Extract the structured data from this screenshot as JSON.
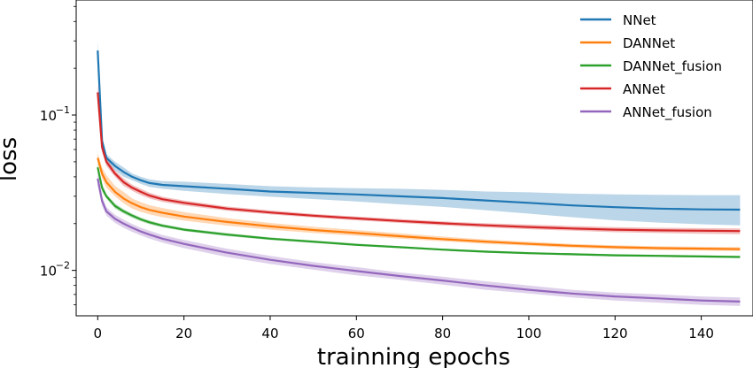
{
  "chart_data": {
    "type": "line",
    "title": "",
    "xlabel": "trainning epochs",
    "ylabel": "loss",
    "xlim": [
      -5,
      152
    ],
    "ylim": [
      0.0051,
      0.55
    ],
    "yscale": "log",
    "xticks": [
      0,
      20,
      40,
      60,
      80,
      100,
      120,
      140
    ],
    "xtick_labels": [
      "0",
      "20",
      "40",
      "60",
      "80",
      "100",
      "120",
      "140"
    ],
    "yticks": [
      0.01,
      0.1
    ],
    "ytick_labels": [
      {
        "base": "10",
        "exp": "−2"
      },
      {
        "base": "10",
        "exp": "−1"
      }
    ],
    "grid": false,
    "legend": "top-right",
    "x": [
      0,
      1,
      2,
      4,
      6,
      8,
      10,
      12,
      15,
      20,
      30,
      40,
      50,
      60,
      70,
      80,
      90,
      100,
      110,
      120,
      130,
      140,
      149
    ],
    "series": [
      {
        "name": "NNet",
        "color": "#1f77b4",
        "values": [
          0.26,
          0.068,
          0.053,
          0.047,
          0.043,
          0.04,
          0.038,
          0.0365,
          0.0355,
          0.0348,
          0.0335,
          0.0322,
          0.0315,
          0.0308,
          0.03,
          0.0292,
          0.0282,
          0.0272,
          0.0262,
          0.0255,
          0.025,
          0.0247,
          0.0246
        ],
        "lower": [
          0.23,
          0.063,
          0.05,
          0.044,
          0.04,
          0.038,
          0.036,
          0.0345,
          0.0335,
          0.0325,
          0.031,
          0.0298,
          0.0288,
          0.0278,
          0.0266,
          0.0256,
          0.0244,
          0.0232,
          0.022,
          0.021,
          0.0203,
          0.0198,
          0.0195
        ],
        "upper": [
          0.3,
          0.073,
          0.056,
          0.05,
          0.046,
          0.042,
          0.04,
          0.0385,
          0.0375,
          0.0372,
          0.036,
          0.0348,
          0.0342,
          0.0338,
          0.0335,
          0.033,
          0.0322,
          0.0318,
          0.0312,
          0.0308,
          0.0306,
          0.0305,
          0.0305
        ]
      },
      {
        "name": "DANNet",
        "color": "#ff7f0e",
        "values": [
          0.053,
          0.042,
          0.037,
          0.032,
          0.029,
          0.027,
          0.0255,
          0.0245,
          0.0235,
          0.0222,
          0.0205,
          0.0192,
          0.0182,
          0.0174,
          0.0166,
          0.0159,
          0.0153,
          0.0148,
          0.0144,
          0.0141,
          0.0139,
          0.0138,
          0.0137
        ],
        "lower": [
          0.049,
          0.039,
          0.034,
          0.03,
          0.027,
          0.025,
          0.0238,
          0.0229,
          0.022,
          0.0209,
          0.0194,
          0.0183,
          0.0174,
          0.0167,
          0.016,
          0.0154,
          0.0148,
          0.0144,
          0.014,
          0.0137,
          0.0135,
          0.0134,
          0.0133
        ],
        "upper": [
          0.057,
          0.046,
          0.041,
          0.035,
          0.032,
          0.029,
          0.0275,
          0.0263,
          0.0252,
          0.0237,
          0.0217,
          0.0202,
          0.0191,
          0.0182,
          0.0173,
          0.0165,
          0.0158,
          0.0153,
          0.0148,
          0.0145,
          0.0143,
          0.0142,
          0.0141
        ]
      },
      {
        "name": "DANNet_fusion",
        "color": "#2ca02c",
        "values": [
          0.046,
          0.034,
          0.03,
          0.026,
          0.024,
          0.0225,
          0.0213,
          0.0204,
          0.0194,
          0.0183,
          0.017,
          0.016,
          0.0153,
          0.0146,
          0.0141,
          0.0136,
          0.0132,
          0.0129,
          0.0127,
          0.0125,
          0.0124,
          0.0123,
          0.0122
        ],
        "lower": [
          0.043,
          0.032,
          0.029,
          0.025,
          0.0232,
          0.0218,
          0.0207,
          0.0198,
          0.0189,
          0.0179,
          0.0166,
          0.0157,
          0.015,
          0.0144,
          0.0139,
          0.0134,
          0.013,
          0.0127,
          0.0125,
          0.0123,
          0.0122,
          0.0121,
          0.012
        ],
        "upper": [
          0.049,
          0.036,
          0.031,
          0.027,
          0.0248,
          0.0232,
          0.0219,
          0.021,
          0.0199,
          0.0187,
          0.0174,
          0.0163,
          0.0156,
          0.0149,
          0.0143,
          0.0138,
          0.0134,
          0.0131,
          0.0129,
          0.0127,
          0.0126,
          0.0125,
          0.0124
        ]
      },
      {
        "name": "ANNet",
        "color": "#d62728",
        "values": [
          0.14,
          0.062,
          0.05,
          0.042,
          0.037,
          0.034,
          0.032,
          0.0303,
          0.0287,
          0.0272,
          0.025,
          0.0236,
          0.0225,
          0.0216,
          0.0208,
          0.0201,
          0.0195,
          0.019,
          0.0186,
          0.0183,
          0.0181,
          0.018,
          0.0179
        ],
        "lower": [
          0.12,
          0.058,
          0.047,
          0.04,
          0.035,
          0.0325,
          0.0305,
          0.029,
          0.0276,
          0.0262,
          0.0242,
          0.0229,
          0.0219,
          0.021,
          0.0202,
          0.0195,
          0.0189,
          0.0184,
          0.018,
          0.0176,
          0.0174,
          0.0172,
          0.0171
        ],
        "upper": [
          0.16,
          0.066,
          0.053,
          0.044,
          0.039,
          0.0355,
          0.0335,
          0.0316,
          0.0298,
          0.0282,
          0.0258,
          0.0243,
          0.0231,
          0.0222,
          0.0214,
          0.0207,
          0.0201,
          0.0197,
          0.0193,
          0.019,
          0.0188,
          0.0187,
          0.0186
        ]
      },
      {
        "name": "ANNet_fusion",
        "color": "#9467bd",
        "values": [
          0.039,
          0.028,
          0.024,
          0.0215,
          0.02,
          0.0188,
          0.0178,
          0.017,
          0.016,
          0.0148,
          0.013,
          0.0117,
          0.0107,
          0.0099,
          0.0092,
          0.0086,
          0.008,
          0.0075,
          0.0071,
          0.0068,
          0.0066,
          0.0064,
          0.0063
        ],
        "lower": [
          0.035,
          0.026,
          0.0225,
          0.0202,
          0.0188,
          0.0177,
          0.0168,
          0.016,
          0.0151,
          0.0139,
          0.0122,
          0.011,
          0.0101,
          0.0093,
          0.0087,
          0.0081,
          0.0075,
          0.0071,
          0.0067,
          0.0064,
          0.0062,
          0.006,
          0.0059
        ],
        "upper": [
          0.043,
          0.03,
          0.0255,
          0.0228,
          0.0212,
          0.0199,
          0.0188,
          0.018,
          0.0169,
          0.0157,
          0.0138,
          0.0124,
          0.0113,
          0.0105,
          0.0097,
          0.0091,
          0.0085,
          0.008,
          0.0075,
          0.0072,
          0.007,
          0.0068,
          0.0067
        ]
      }
    ]
  }
}
